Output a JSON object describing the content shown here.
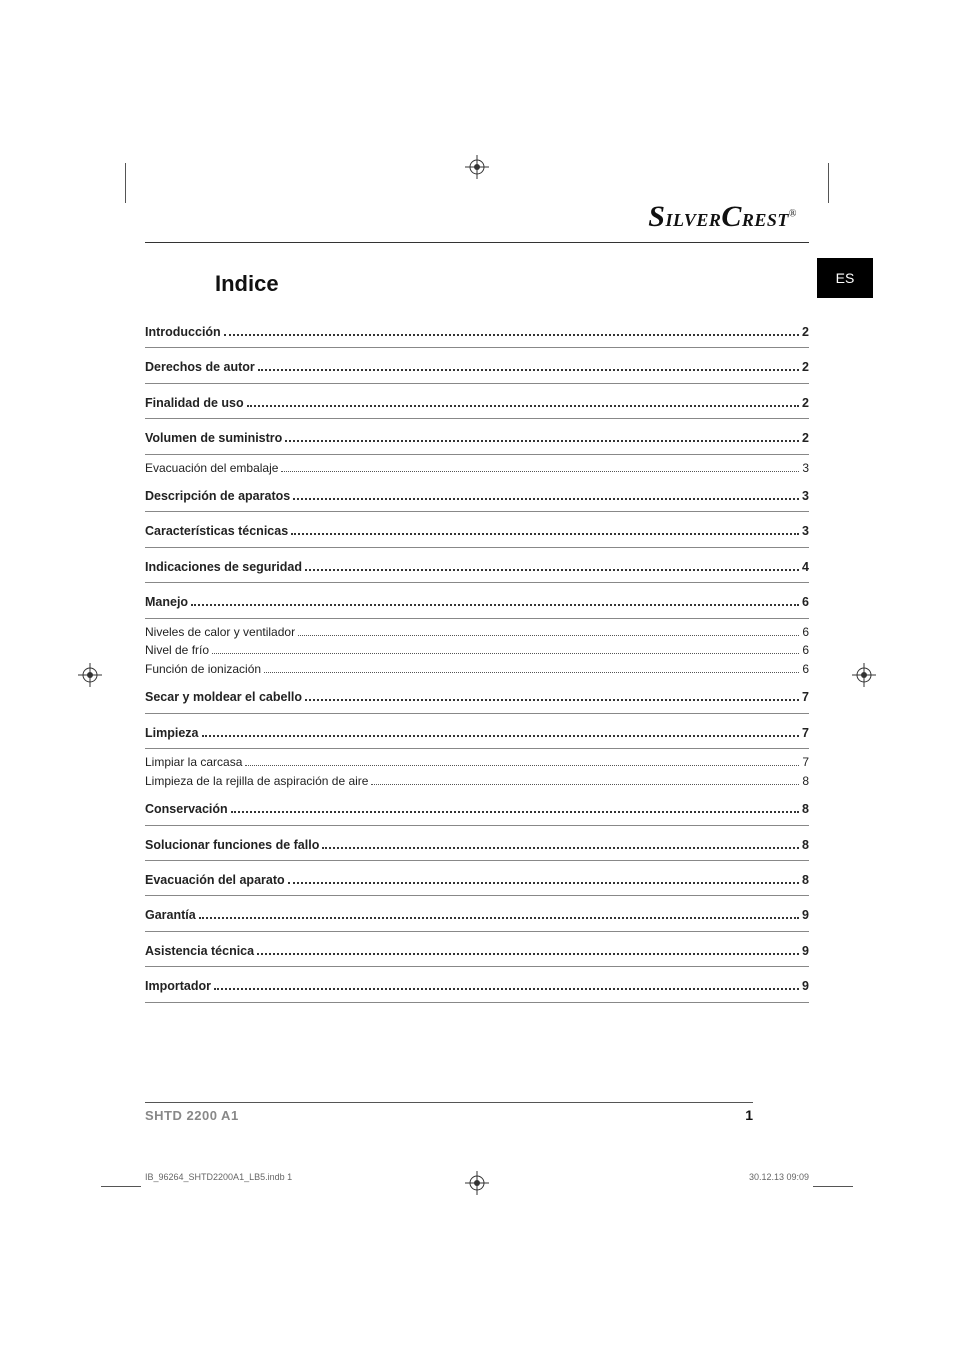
{
  "brand": "SilverCrest",
  "brand_reg": "®",
  "lang_tab": "ES",
  "title": "Indice",
  "toc": [
    {
      "label": "Introducción",
      "page": "2",
      "bold": true,
      "subs": []
    },
    {
      "label": "Derechos de autor",
      "page": "2",
      "bold": true,
      "subs": []
    },
    {
      "label": "Finalidad de uso",
      "page": "2",
      "bold": true,
      "subs": []
    },
    {
      "label": "Volumen de suministro",
      "page": "2",
      "bold": true,
      "subs": [
        {
          "label": "Evacuación del embalaje",
          "page": "3"
        }
      ]
    },
    {
      "label": "Descripción de aparatos",
      "page": "3",
      "bold": true,
      "subs": []
    },
    {
      "label": "Características técnicas",
      "page": "3",
      "bold": true,
      "subs": []
    },
    {
      "label": "Indicaciones de seguridad",
      "page": "4",
      "bold": true,
      "subs": []
    },
    {
      "label": "Manejo",
      "page": "6",
      "bold": true,
      "subs": [
        {
          "label": "Niveles de calor y ventilador",
          "page": "6"
        },
        {
          "label": "Nivel de frío",
          "page": "6"
        },
        {
          "label": "Función de ionización",
          "page": "6"
        }
      ]
    },
    {
      "label": "Secar y moldear el cabello",
      "page": "7",
      "bold": true,
      "subs": []
    },
    {
      "label": "Limpieza",
      "page": "7",
      "bold": true,
      "subs": [
        {
          "label": "Limpiar la carcasa",
          "page": "7"
        },
        {
          "label": "Limpieza de la rejilla de aspiración de aire",
          "page": "8"
        }
      ]
    },
    {
      "label": "Conservación",
      "page": "8",
      "bold": true,
      "subs": []
    },
    {
      "label": "Solucionar funciones de fallo",
      "page": "8",
      "bold": true,
      "subs": []
    },
    {
      "label": "Evacuación del aparato",
      "page": "8",
      "bold": true,
      "subs": []
    },
    {
      "label": "Garantía",
      "page": "9",
      "bold": true,
      "subs": []
    },
    {
      "label": "Asistencia técnica",
      "page": "9",
      "bold": true,
      "subs": []
    },
    {
      "label": "Importador",
      "page": "9",
      "bold": true,
      "subs": []
    }
  ],
  "footer": {
    "model": "SHTD 2200 A1",
    "page_number": "1",
    "print_file": "IB_96264_SHTD2200A1_LB5.indb   1",
    "print_date": "30.12.13   09:09"
  },
  "colors": {
    "text": "#111111",
    "muted": "#888888",
    "line": "#555555",
    "tab_bg": "#000000",
    "tab_fg": "#ffffff"
  }
}
